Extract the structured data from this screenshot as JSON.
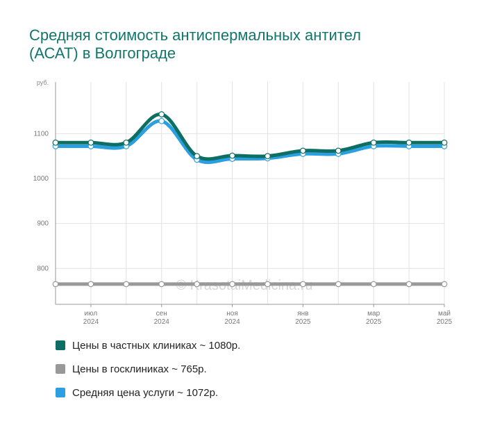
{
  "chart_data": {
    "type": "line",
    "title_lines": [
      "Средняя стоимость антиспермальных антител",
      "(АСАТ) в Волгограде"
    ],
    "ylabel": "руб.",
    "ylim": [
      720,
      1215
    ],
    "yticks": [
      800,
      900,
      1000,
      1100
    ],
    "x_months": [
      "2024-06",
      "2024-07",
      "2024-08",
      "2024-09",
      "2024-10",
      "2024-11",
      "2024-12",
      "2025-01",
      "2025-02",
      "2025-03",
      "2025-04",
      "2025-05"
    ],
    "x_tick_labels": [
      {
        "month": "2024-07",
        "line1": "июл",
        "line2": "2024"
      },
      {
        "month": "2024-09",
        "line1": "сен",
        "line2": "2024"
      },
      {
        "month": "2024-11",
        "line1": "ноя",
        "line2": "2024"
      },
      {
        "month": "2025-01",
        "line1": "янв",
        "line2": "2025"
      },
      {
        "month": "2025-03",
        "line1": "мар",
        "line2": "2025"
      },
      {
        "month": "2025-05",
        "line1": "май",
        "line2": "2025"
      }
    ],
    "grid": true,
    "watermark": "© KrasotaiMedicina.ru",
    "series": [
      {
        "name": "Цены в частных клиниках",
        "color": "#0d6e64",
        "values": [
          1080,
          1080,
          1080,
          1143,
          1050,
          1051,
          1050,
          1062,
          1062,
          1080,
          1080,
          1080
        ]
      },
      {
        "name": "Цены в госклиниках",
        "color": "#999999",
        "values": [
          765,
          765,
          765,
          765,
          765,
          765,
          765,
          765,
          765,
          765,
          765,
          765
        ]
      },
      {
        "name": "Средняя цена услуги",
        "color": "#2b9fe0",
        "values": [
          1072,
          1072,
          1072,
          1128,
          1042,
          1044,
          1045,
          1055,
          1055,
          1072,
          1072,
          1072
        ]
      }
    ]
  },
  "legend": [
    {
      "label": "Цены в частных клиниках ~ 1080р.",
      "color": "#0d6e64"
    },
    {
      "label": "Цены в госклиниках ~ 765р.",
      "color": "#999999"
    },
    {
      "label": "Средняя цена услуги ~ 1072р.",
      "color": "#2b9fe0"
    }
  ]
}
